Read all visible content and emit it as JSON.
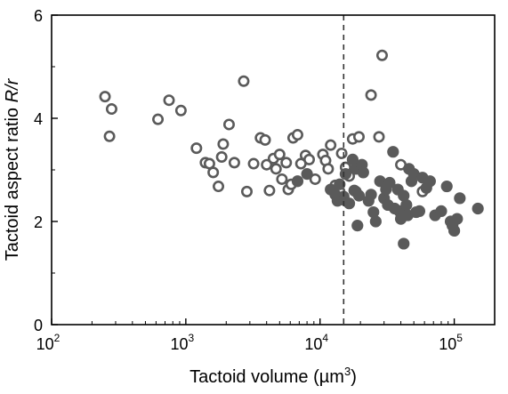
{
  "chart_data": {
    "type": "scatter",
    "xscale": "log",
    "xlim": [
      100,
      200000
    ],
    "ylim": [
      0,
      6
    ],
    "grid": false,
    "legend": "none",
    "xlabel": {
      "pre": "Tactoid volume (µm",
      "sup": "3",
      "post": ")"
    },
    "ylabel": {
      "pre": "Tactoid aspect ratio ",
      "italic": "R/r"
    },
    "x_ticks": [
      {
        "value": 100,
        "base": "10",
        "exp": "2"
      },
      {
        "value": 1000,
        "base": "10",
        "exp": "3"
      },
      {
        "value": 10000,
        "base": "10",
        "exp": "4"
      },
      {
        "value": 100000,
        "base": "10",
        "exp": "5"
      }
    ],
    "y_ticks": [
      {
        "value": 0,
        "label": "0"
      },
      {
        "value": 2,
        "label": "2"
      },
      {
        "value": 4,
        "label": "4"
      },
      {
        "value": 6,
        "label": "6"
      }
    ],
    "reference_line": {
      "x": 15000,
      "style": "dashed"
    },
    "colors": {
      "marker": "#5a5a5a",
      "open_fill": "#ffffff",
      "axis": "#000000"
    },
    "series": [
      {
        "marker": "open-circle",
        "points": [
          [
            250,
            4.42
          ],
          [
            280,
            4.18
          ],
          [
            270,
            3.65
          ],
          [
            620,
            3.98
          ],
          [
            750,
            4.35
          ],
          [
            920,
            4.15
          ],
          [
            1200,
            3.42
          ],
          [
            1400,
            3.14
          ],
          [
            1500,
            3.12
          ],
          [
            1600,
            2.95
          ],
          [
            1750,
            2.68
          ],
          [
            1850,
            3.25
          ],
          [
            1900,
            3.5
          ],
          [
            2100,
            3.88
          ],
          [
            2300,
            3.14
          ],
          [
            2700,
            4.72
          ],
          [
            2850,
            2.58
          ],
          [
            3200,
            3.12
          ],
          [
            3600,
            3.62
          ],
          [
            3900,
            3.58
          ],
          [
            4000,
            3.1
          ],
          [
            4200,
            2.6
          ],
          [
            4500,
            3.22
          ],
          [
            4700,
            3.02
          ],
          [
            5000,
            3.3
          ],
          [
            5200,
            2.82
          ],
          [
            5600,
            3.14
          ],
          [
            5800,
            2.62
          ],
          [
            6100,
            2.72
          ],
          [
            6300,
            3.62
          ],
          [
            6800,
            3.68
          ],
          [
            7200,
            3.12
          ],
          [
            7800,
            3.28
          ],
          [
            8300,
            3.2
          ],
          [
            9200,
            2.82
          ],
          [
            10500,
            3.3
          ],
          [
            11000,
            3.18
          ],
          [
            11500,
            3.02
          ],
          [
            12000,
            3.48
          ],
          [
            13000,
            2.7
          ],
          [
            14000,
            2.58
          ],
          [
            14500,
            3.32
          ],
          [
            15500,
            3.05
          ],
          [
            16500,
            2.88
          ],
          [
            17500,
            3.6
          ],
          [
            18500,
            2.58
          ],
          [
            19500,
            3.64
          ],
          [
            24000,
            4.45
          ],
          [
            27500,
            3.64
          ],
          [
            29000,
            5.22
          ],
          [
            40000,
            3.1
          ],
          [
            58000,
            2.58
          ]
        ]
      },
      {
        "marker": "filled-circle",
        "points": [
          [
            6800,
            2.78
          ],
          [
            8000,
            2.92
          ],
          [
            12000,
            2.62
          ],
          [
            13000,
            2.52
          ],
          [
            13500,
            2.4
          ],
          [
            14000,
            2.72
          ],
          [
            15000,
            2.48
          ],
          [
            15000,
            2.42
          ],
          [
            15500,
            2.92
          ],
          [
            16500,
            2.35
          ],
          [
            17500,
            3.2
          ],
          [
            18000,
            2.6
          ],
          [
            18500,
            3.02
          ],
          [
            19500,
            2.5
          ],
          [
            20500,
            3.1
          ],
          [
            19000,
            1.92
          ],
          [
            21000,
            2.95
          ],
          [
            23000,
            2.4
          ],
          [
            24000,
            2.52
          ],
          [
            25000,
            2.18
          ],
          [
            26000,
            2.0
          ],
          [
            28000,
            2.78
          ],
          [
            30000,
            2.45
          ],
          [
            31000,
            2.62
          ],
          [
            32000,
            2.32
          ],
          [
            33000,
            2.75
          ],
          [
            35000,
            3.35
          ],
          [
            36000,
            2.25
          ],
          [
            38000,
            2.62
          ],
          [
            39000,
            2.2
          ],
          [
            40000,
            2.05
          ],
          [
            42000,
            2.5
          ],
          [
            42000,
            1.57
          ],
          [
            44000,
            2.32
          ],
          [
            45000,
            2.12
          ],
          [
            46000,
            3.02
          ],
          [
            48000,
            2.78
          ],
          [
            50000,
            2.92
          ],
          [
            52000,
            2.18
          ],
          [
            55000,
            2.2
          ],
          [
            58000,
            2.85
          ],
          [
            62000,
            2.65
          ],
          [
            66000,
            2.78
          ],
          [
            72000,
            2.12
          ],
          [
            80000,
            2.2
          ],
          [
            88000,
            2.68
          ],
          [
            94000,
            2.0
          ],
          [
            97000,
            1.92
          ],
          [
            100000,
            1.82
          ],
          [
            105000,
            2.05
          ],
          [
            110000,
            2.45
          ],
          [
            150000,
            2.25
          ]
        ]
      }
    ]
  }
}
